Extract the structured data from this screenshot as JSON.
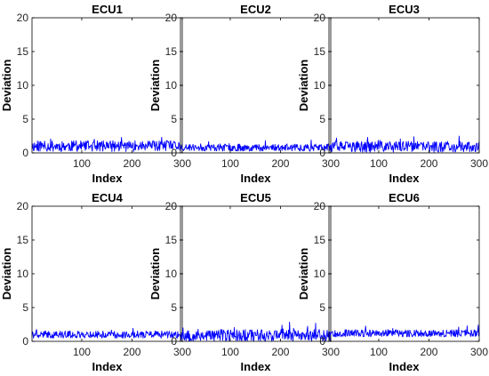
{
  "chart_data": [
    {
      "type": "line",
      "title": "ECU1",
      "xlabel": "Index",
      "ylabel": "Deviation",
      "xlim": [
        1,
        300
      ],
      "ylim": [
        0,
        20
      ],
      "xticks": [
        100,
        200,
        300
      ],
      "yticks": [
        0,
        5,
        10,
        15,
        20
      ],
      "grid": false,
      "line_color": "#0000ff",
      "series": [
        {
          "level": 1.0,
          "spread": 0.9,
          "seed": 11
        }
      ]
    },
    {
      "type": "line",
      "title": "ECU2",
      "xlabel": "Index",
      "ylabel": "Deviation",
      "xlim": [
        1,
        300
      ],
      "ylim": [
        0,
        20
      ],
      "xticks": [
        100,
        200,
        300
      ],
      "yticks": [
        0,
        5,
        10,
        15,
        20
      ],
      "grid": false,
      "line_color": "#0000ff",
      "series": [
        {
          "level": 0.8,
          "spread": 0.6,
          "seed": 23
        }
      ]
    },
    {
      "type": "line",
      "title": "ECU3",
      "xlabel": "Index",
      "ylabel": "Deviation",
      "xlim": [
        1,
        300
      ],
      "ylim": [
        0,
        20
      ],
      "xticks": [
        100,
        200,
        300
      ],
      "yticks": [
        0,
        5,
        10,
        15,
        20
      ],
      "grid": false,
      "line_color": "#0000ff",
      "series": [
        {
          "level": 0.9,
          "spread": 0.9,
          "seed": 37
        }
      ]
    },
    {
      "type": "line",
      "title": "ECU4",
      "xlabel": "Index",
      "ylabel": "Deviation",
      "xlim": [
        1,
        300
      ],
      "ylim": [
        0,
        20
      ],
      "xticks": [
        100,
        200,
        300
      ],
      "yticks": [
        0,
        5,
        10,
        15,
        20
      ],
      "grid": false,
      "line_color": "#0000ff",
      "series": [
        {
          "level": 1.0,
          "spread": 0.6,
          "seed": 41
        }
      ]
    },
    {
      "type": "line",
      "title": "ECU5",
      "xlabel": "Index",
      "ylabel": "Deviation",
      "xlim": [
        1,
        300
      ],
      "ylim": [
        0,
        20
      ],
      "xticks": [
        100,
        200,
        300
      ],
      "yticks": [
        0,
        5,
        10,
        15,
        20
      ],
      "grid": false,
      "line_color": "#0000ff",
      "series": [
        {
          "level": 0.9,
          "spread": 1.0,
          "seed": 53
        }
      ]
    },
    {
      "type": "line",
      "title": "ECU6",
      "xlabel": "Index",
      "ylabel": "Deviation",
      "xlim": [
        1,
        300
      ],
      "ylim": [
        0,
        20
      ],
      "xticks": [
        100,
        200,
        300
      ],
      "yticks": [
        0,
        5,
        10,
        15,
        20
      ],
      "grid": false,
      "line_color": "#0000ff",
      "series": [
        {
          "level": 1.2,
          "spread": 0.6,
          "seed": 67
        }
      ]
    }
  ]
}
